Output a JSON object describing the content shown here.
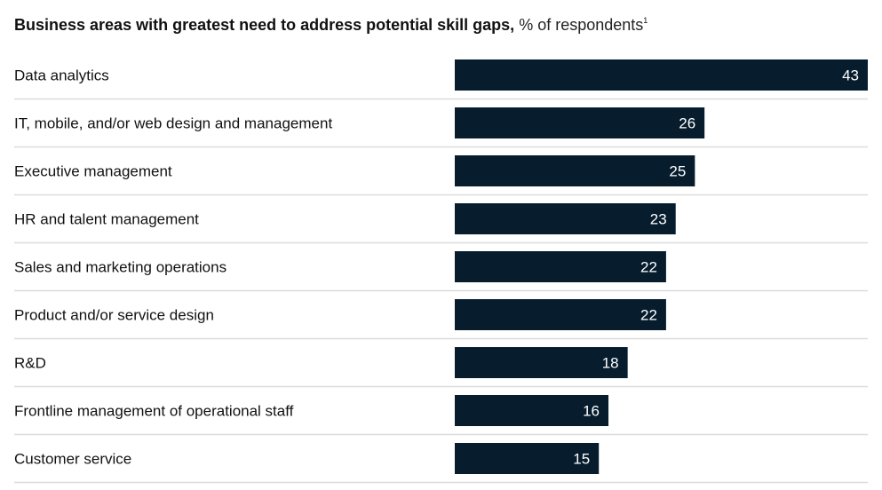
{
  "title": {
    "bold": "Business areas with greatest need to address potential skill gaps,",
    "normal": "% of respondents",
    "footnote": "1"
  },
  "colors": {
    "bar": "#071d2e",
    "divider": "#dcdcdc",
    "label": "#111111",
    "value_label": "#ffffff"
  },
  "chart_data": {
    "type": "bar",
    "orientation": "horizontal",
    "title": "Business areas with greatest need to address potential skill gaps, % of respondents",
    "xlabel": "",
    "ylabel": "",
    "categories": [
      "Data analytics",
      "IT, mobile, and/or web design and management",
      "Executive management",
      "HR and talent management",
      "Sales and marketing operations",
      "Product and/or service design",
      "R&D",
      "Frontline management of operational staff",
      "Customer service"
    ],
    "values": [
      43,
      26,
      25,
      23,
      22,
      22,
      18,
      16,
      15
    ],
    "xlim": [
      0,
      43
    ],
    "grid": false,
    "legend": "none",
    "data_labels": true
  }
}
